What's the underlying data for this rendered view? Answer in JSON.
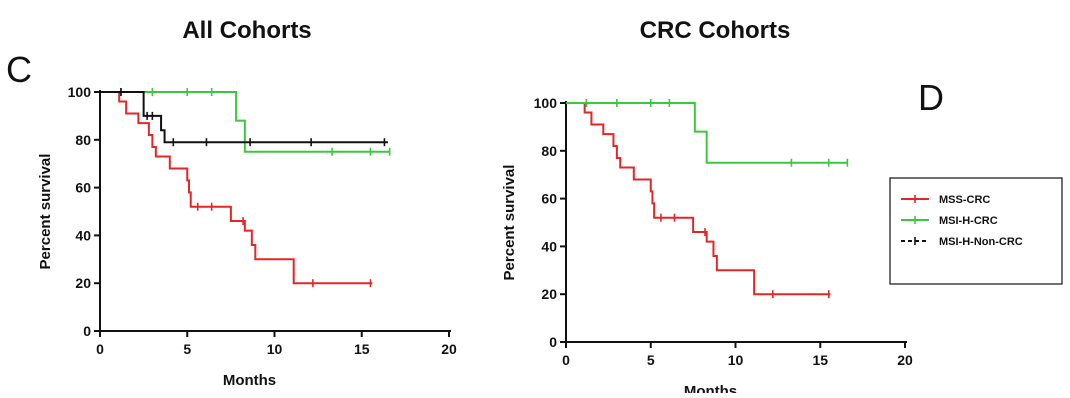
{
  "panels": {
    "left_letter": "C",
    "right_letter": "D"
  },
  "legend": {
    "entries": [
      {
        "name": "MSS-CRC",
        "color": "#e32626"
      },
      {
        "name": "MSI-H-CRC",
        "color": "#3cc83c"
      },
      {
        "name": "MSI-H-Non-CRC",
        "color": "#111111"
      }
    ],
    "placement": "right"
  },
  "chart_data": [
    {
      "type": "line",
      "title": "All Cohorts",
      "xlabel": "Months",
      "ylabel": "Percent survival",
      "xlim": [
        0,
        20
      ],
      "ylim": [
        0,
        100
      ],
      "xticks": [
        0,
        5,
        10,
        15,
        20
      ],
      "yticks": [
        0,
        20,
        40,
        60,
        80,
        100
      ],
      "step": true,
      "grid": false,
      "series": [
        {
          "name": "MSS-CRC",
          "color": "#e32626",
          "points": [
            [
              0.8,
              100
            ],
            [
              1.1,
              96
            ],
            [
              1.5,
              91
            ],
            [
              2.2,
              87
            ],
            [
              2.8,
              82
            ],
            [
              3.0,
              77
            ],
            [
              3.2,
              73
            ],
            [
              4.0,
              68
            ],
            [
              5.0,
              63
            ],
            [
              5.1,
              58
            ],
            [
              5.2,
              52
            ],
            [
              7.5,
              46
            ],
            [
              8.3,
              42
            ],
            [
              8.7,
              36
            ],
            [
              8.9,
              30
            ],
            [
              11.1,
              20
            ],
            [
              15.6,
              20
            ]
          ],
          "censors": [
            [
              5.6,
              52
            ],
            [
              6.4,
              52
            ],
            [
              8.2,
              46
            ],
            [
              12.2,
              20
            ],
            [
              15.5,
              20
            ]
          ]
        },
        {
          "name": "MSI-H-CRC",
          "color": "#3cc83c",
          "points": [
            [
              0,
              100
            ],
            [
              7.7,
              100
            ],
            [
              7.8,
              88
            ],
            [
              8.3,
              75
            ],
            [
              16.6,
              75
            ]
          ],
          "censors": [
            [
              1.2,
              100
            ],
            [
              3.0,
              100
            ],
            [
              5.0,
              100
            ],
            [
              6.4,
              100
            ],
            [
              13.3,
              75
            ],
            [
              15.5,
              75
            ],
            [
              16.6,
              75
            ]
          ]
        },
        {
          "name": "MSI-H-Non-CRC",
          "color": "#111111",
          "points": [
            [
              0,
              100
            ],
            [
              2.4,
              100
            ],
            [
              2.5,
              90
            ],
            [
              3.5,
              84
            ],
            [
              3.7,
              79
            ],
            [
              16.5,
              79
            ]
          ],
          "censors": [
            [
              1.2,
              100
            ],
            [
              2.7,
              90
            ],
            [
              3.0,
              90
            ],
            [
              4.2,
              79
            ],
            [
              6.1,
              79
            ],
            [
              8.6,
              79
            ],
            [
              12.1,
              79
            ],
            [
              16.3,
              79
            ]
          ]
        }
      ]
    },
    {
      "type": "line",
      "title": "CRC Cohorts",
      "xlabel": "Months",
      "ylabel": "Percent survival",
      "xlim": [
        0,
        20
      ],
      "ylim": [
        0,
        100
      ],
      "xticks": [
        0,
        5,
        10,
        15,
        20
      ],
      "yticks": [
        0,
        20,
        40,
        60,
        80,
        100
      ],
      "step": true,
      "grid": false,
      "series": [
        {
          "name": "MSS-CRC",
          "color": "#e32626",
          "points": [
            [
              0.8,
              100
            ],
            [
              1.1,
              96
            ],
            [
              1.5,
              91
            ],
            [
              2.2,
              87
            ],
            [
              2.8,
              82
            ],
            [
              3.0,
              77
            ],
            [
              3.2,
              73
            ],
            [
              4.0,
              68
            ],
            [
              5.0,
              63
            ],
            [
              5.1,
              58
            ],
            [
              5.2,
              52
            ],
            [
              7.5,
              46
            ],
            [
              8.3,
              42
            ],
            [
              8.7,
              36
            ],
            [
              8.9,
              30
            ],
            [
              11.1,
              20
            ],
            [
              15.6,
              20
            ]
          ],
          "censors": [
            [
              5.6,
              52
            ],
            [
              6.4,
              52
            ],
            [
              8.2,
              46
            ],
            [
              12.2,
              20
            ],
            [
              15.5,
              20
            ]
          ]
        },
        {
          "name": "MSI-H-CRC",
          "color": "#3cc83c",
          "points": [
            [
              0,
              100
            ],
            [
              7.5,
              100
            ],
            [
              7.6,
              88
            ],
            [
              8.3,
              75
            ],
            [
              16.6,
              75
            ]
          ],
          "censors": [
            [
              1.2,
              100
            ],
            [
              3.0,
              100
            ],
            [
              5.0,
              100
            ],
            [
              6.1,
              100
            ],
            [
              13.3,
              75
            ],
            [
              15.5,
              75
            ],
            [
              16.6,
              75
            ]
          ]
        }
      ]
    }
  ]
}
